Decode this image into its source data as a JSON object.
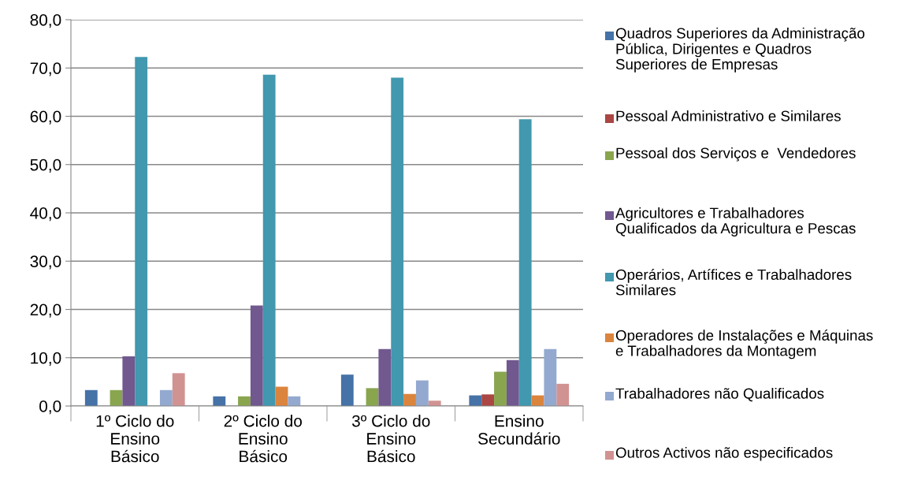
{
  "chart_data": {
    "type": "bar",
    "categories": [
      "1º Ciclo do\nEnsino\nBásico",
      "2º Ciclo do\nEnsino\nBásico",
      "3º Ciclo do\nEnsino\nBásico",
      "Ensino\nSecundário"
    ],
    "series": [
      {
        "name": "Quadros Superiores da Administração\nPública, Dirigentes e Quadros\nSuperiores de Empresas",
        "color": "#4572a7",
        "values": [
          3.3,
          2.0,
          6.5,
          2.2
        ]
      },
      {
        "name": "Pessoal Administrativo e Similares",
        "color": "#aa4643",
        "values": [
          0,
          0,
          0,
          2.4
        ]
      },
      {
        "name": "Pessoal dos Serviços e  Vendedores",
        "color": "#89a54e",
        "values": [
          3.3,
          2.0,
          3.7,
          7.1
        ]
      },
      {
        "name": "Agricultores e Trabalhadores\nQualificados da Agricultura e Pescas",
        "color": "#71588f",
        "values": [
          10.3,
          20.8,
          11.8,
          9.5
        ]
      },
      {
        "name": "Operários, Artífices e Trabalhadores\nSimilares",
        "color": "#4198af",
        "values": [
          72.3,
          68.6,
          68.0,
          59.4
        ]
      },
      {
        "name": "Operadores de Instalações e Máquinas\ne Trabalhadores da Montagem",
        "color": "#db843d",
        "values": [
          0,
          4.0,
          2.5,
          2.2
        ]
      },
      {
        "name": "Trabalhadores não Qualificados",
        "color": "#93a9cf",
        "values": [
          3.3,
          2.0,
          5.3,
          11.8
        ]
      },
      {
        "name": "Outros Activos não especificados",
        "color": "#d19392",
        "values": [
          6.8,
          0,
          1.1,
          4.6
        ]
      }
    ],
    "ylim": [
      0,
      80
    ],
    "yticks": [
      {
        "value": 0,
        "label": "0,0"
      },
      {
        "value": 10,
        "label": "10,0"
      },
      {
        "value": 20,
        "label": "20,0"
      },
      {
        "value": 30,
        "label": "30,0"
      },
      {
        "value": 40,
        "label": "40,0"
      },
      {
        "value": 50,
        "label": "50,0"
      },
      {
        "value": 60,
        "label": "60,0"
      },
      {
        "value": 70,
        "label": "70,0"
      },
      {
        "value": 80,
        "label": "80,0"
      }
    ],
    "grid": "y",
    "legend": "right"
  }
}
